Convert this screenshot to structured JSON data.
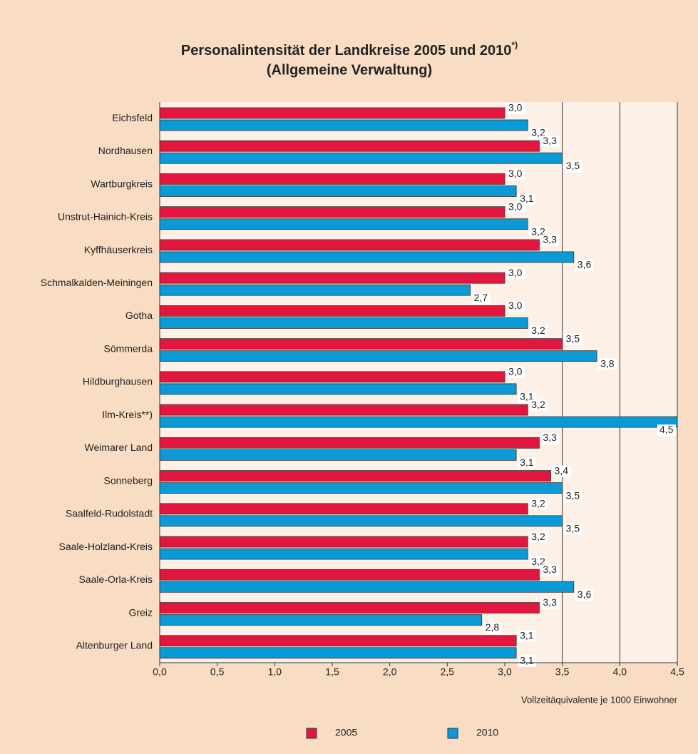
{
  "chart_data": {
    "type": "hbar",
    "title": "Personalintensität der Landkreise 2005 und 2010",
    "title_note": "*)",
    "subtitle": "(Allgemeine Verwaltung)",
    "x_label": "Vollzeitäquivalente je 1000 Einwohner",
    "categories": [
      "Eichsfeld",
      "Nordhausen",
      "Wartburgkreis",
      "Unstrut-Hainich-Kreis",
      "Kyffhäuserkreis",
      "Schmalkalden-Meiningen",
      "Gotha",
      "Sömmerda",
      "Hildburghausen",
      "Ilm-Kreis**)",
      "Weimarer Land",
      "Sonneberg",
      "Saalfeld-Rudolstadt",
      "Saale-Holzland-Kreis",
      "Saale-Orla-Kreis",
      "Greiz",
      "Altenburger Land"
    ],
    "series": [
      {
        "name": "2005",
        "color": "#e3173e",
        "values": [
          3.0,
          3.3,
          3.0,
          3.0,
          3.3,
          3.0,
          3.0,
          3.5,
          3.0,
          3.2,
          3.3,
          3.4,
          3.2,
          3.2,
          3.3,
          3.3,
          3.1
        ],
        "value_labels": [
          "3,0",
          "3,3",
          "3,0",
          "3,0",
          "3,3",
          "3,0",
          "3,0",
          "3,5",
          "3,0",
          "3,2",
          "3,3",
          "3,4",
          "3,2",
          "3,2",
          "3,3",
          "3,3",
          "3,1"
        ]
      },
      {
        "name": "2010",
        "color": "#0a9ad7",
        "values": [
          3.2,
          3.5,
          3.1,
          3.2,
          3.6,
          2.7,
          3.2,
          3.8,
          3.1,
          4.5,
          3.1,
          3.5,
          3.5,
          3.2,
          3.6,
          2.8,
          3.1
        ],
        "value_labels": [
          "3,2",
          "3,5",
          "3,1",
          "3,2",
          "3,6",
          "2,7",
          "3,2",
          "3,8",
          "3,1",
          "4,5",
          "3,1",
          "3,5",
          "3,5",
          "3,2",
          "3,6",
          "2,8",
          "3,1"
        ]
      }
    ],
    "xlim": [
      0,
      4.5
    ],
    "xticks": [
      {
        "value": 0,
        "label": "0,0"
      },
      {
        "value": 0.5,
        "label": "0,5"
      },
      {
        "value": 1,
        "label": "1,0"
      },
      {
        "value": 1.5,
        "label": "1,5"
      },
      {
        "value": 2,
        "label": "2,0"
      },
      {
        "value": 2.5,
        "label": "2,5"
      },
      {
        "value": 3,
        "label": "3,0"
      },
      {
        "value": 3.5,
        "label": "3,5"
      },
      {
        "value": 4,
        "label": "4,0"
      },
      {
        "value": 4.5,
        "label": "4,5"
      }
    ],
    "grid_values": [
      3.5,
      4,
      4.5
    ],
    "legend": "bottom"
  }
}
